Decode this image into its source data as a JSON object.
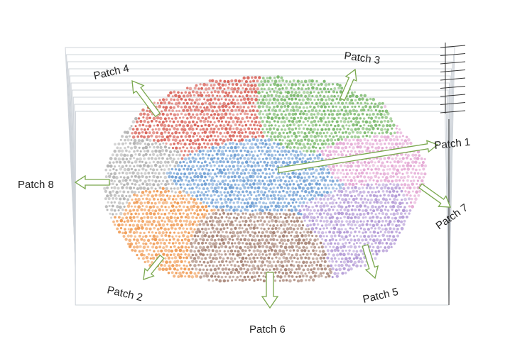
{
  "diagram": {
    "patches": [
      {
        "id": "patch-1",
        "label": "Patch 1",
        "color": "#6f9fd4"
      },
      {
        "id": "patch-2",
        "label": "Patch 2",
        "color": "#f09a52"
      },
      {
        "id": "patch-3",
        "label": "Patch 3",
        "color": "#79b86a"
      },
      {
        "id": "patch-4",
        "label": "Patch 4",
        "color": "#d96258"
      },
      {
        "id": "patch-5",
        "label": "Patch 5",
        "color": "#b39ad6"
      },
      {
        "id": "patch-6",
        "label": "Patch 6",
        "color": "#a78476"
      },
      {
        "id": "patch-7",
        "label": "Patch 7",
        "color": "#e3a6d3"
      },
      {
        "id": "patch-8",
        "label": "Patch 8",
        "color": "#b3b3b3"
      }
    ],
    "arrow_style": {
      "fill": "#ffffff",
      "stroke": "#7aa84e"
    },
    "pane_color": "#cfd4da"
  }
}
